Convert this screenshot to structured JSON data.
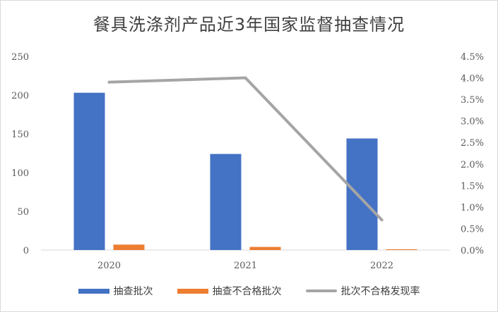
{
  "chart_data": {
    "type": "bar",
    "title": "餐具洗涤剂产品近3年国家监督抽查情况",
    "categories": [
      "2020",
      "2021",
      "2022"
    ],
    "series": [
      {
        "name": "抽查批次",
        "axis": "left",
        "kind": "bar",
        "color": "#4472C4",
        "values": [
          203,
          124,
          144
        ]
      },
      {
        "name": "抽查不合格批次",
        "axis": "left",
        "kind": "bar",
        "color": "#ED7D31",
        "values": [
          7,
          4,
          1
        ]
      },
      {
        "name": "批次不合格发现率",
        "axis": "right",
        "kind": "line",
        "color": "#A5A5A5",
        "values": [
          0.039,
          0.04,
          0.007
        ]
      }
    ],
    "y_left": {
      "min": 0,
      "max": 250,
      "ticks": [
        "0",
        "50",
        "100",
        "150",
        "200",
        "250"
      ]
    },
    "y_right": {
      "min": 0,
      "max": 0.045,
      "ticks": [
        "0.0%",
        "0.5%",
        "1.0%",
        "1.5%",
        "2.0%",
        "2.5%",
        "3.0%",
        "3.5%",
        "4.0%",
        "4.5%"
      ]
    },
    "grid": false,
    "legend_position": "bottom"
  }
}
